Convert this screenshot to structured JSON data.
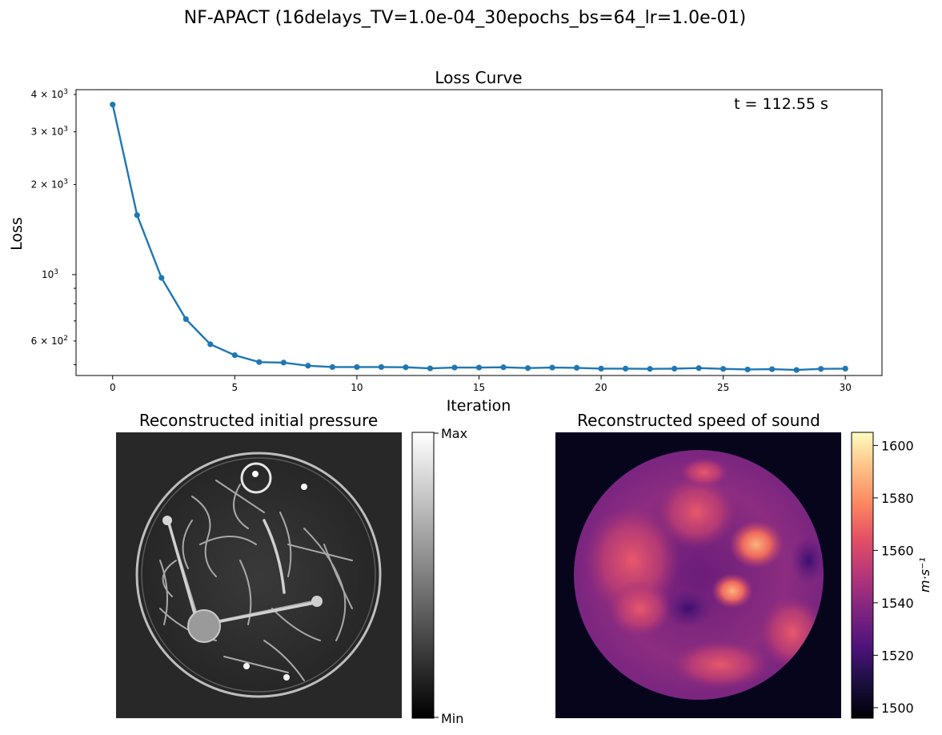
{
  "suptitle": "NF-APACT (16delays_TV=1.0e-04_30epochs_bs=64_lr=1.0e-01)",
  "loss_panel": {
    "title": "Loss Curve",
    "annotation": "t = 112.55 s",
    "xlabel": "Iteration",
    "ylabel": "Loss",
    "x_ticks": [
      "0",
      "5",
      "10",
      "15",
      "20",
      "25",
      "30"
    ],
    "y_major_ticks": [
      {
        "value": 1000,
        "base": "10",
        "exp": "3"
      }
    ],
    "y_minor_ticks": [
      {
        "value": 600,
        "mant": "6 × 10",
        "exp": "2"
      },
      {
        "value": 2000,
        "mant": "2 × 10",
        "exp": "3"
      },
      {
        "value": 3000,
        "mant": "3 × 10",
        "exp": "3"
      },
      {
        "value": 4000,
        "mant": "4 × 10",
        "exp": "3"
      }
    ],
    "line_color": "#1f77b4"
  },
  "pressure_panel": {
    "title": "Reconstructed initial pressure",
    "colorbar_max_label": "Max",
    "colorbar_min_label": "Min"
  },
  "sos_panel": {
    "title": "Reconstructed speed of sound",
    "colorbar_ticks": [
      "1500",
      "1520",
      "1540",
      "1560",
      "1580",
      "1600"
    ],
    "colorbar_label": "m·s⁻¹",
    "colorbar_range": [
      1496,
      1605
    ]
  },
  "chart_data": [
    {
      "type": "line",
      "title": "Loss Curve",
      "xlabel": "Iteration",
      "ylabel": "Loss",
      "yscale": "log",
      "xlim": [
        -1.5,
        31.5
      ],
      "ylim": [
        460,
        4150
      ],
      "series": [
        {
          "x": [
            0,
            1,
            2,
            3,
            4,
            5,
            6,
            7,
            8,
            9,
            10,
            11,
            12,
            13,
            14,
            15,
            16,
            17,
            18,
            19,
            20,
            21,
            22,
            23,
            24,
            25,
            26,
            27,
            28,
            29,
            30
          ],
          "values": [
            3700,
            1580,
            975,
            710,
            585,
            538,
            510,
            508,
            496,
            491,
            491,
            491,
            490,
            486,
            489,
            489,
            490,
            487,
            489,
            488,
            485,
            485,
            484,
            485,
            487,
            484,
            482,
            483,
            480,
            484,
            485
          ]
        }
      ]
    },
    {
      "type": "heatmap",
      "title": "Reconstructed initial pressure",
      "colorbar": [
        "Min",
        "Max"
      ]
    },
    {
      "type": "heatmap",
      "title": "Reconstructed speed of sound",
      "colorbar_range": [
        1496,
        1605
      ],
      "colorbar_ticks": [
        1500,
        1520,
        1540,
        1560,
        1580,
        1600
      ]
    }
  ]
}
